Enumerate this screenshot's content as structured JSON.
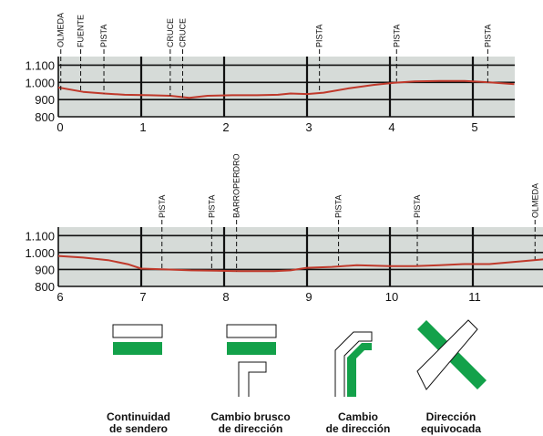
{
  "colors": {
    "panel": "#d6dbd8",
    "grid": "#111111",
    "profile": "#c0392b",
    "waymark": "#13a14a"
  },
  "chart_data": [
    {
      "type": "line",
      "title": "",
      "xlabel": "",
      "ylabel": "",
      "xlim": [
        0,
        5.5
      ],
      "ylim": [
        800,
        1150
      ],
      "xticks": [
        "0",
        "1",
        "2",
        "3",
        "4",
        "5"
      ],
      "yticks": [
        "1.100",
        "1.000",
        "900",
        "800"
      ],
      "yticks_values": [
        1100,
        1000,
        900,
        800
      ],
      "x": [
        0,
        0.3,
        0.55,
        0.8,
        1.1,
        1.35,
        1.58,
        1.8,
        2.1,
        2.4,
        2.65,
        2.8,
        3.0,
        3.2,
        3.5,
        3.8,
        4.05,
        4.3,
        4.6,
        4.9,
        5.2,
        5.5
      ],
      "values": [
        970,
        945,
        935,
        928,
        925,
        922,
        910,
        922,
        925,
        925,
        928,
        935,
        932,
        940,
        965,
        985,
        998,
        1005,
        1008,
        1008,
        1000,
        990
      ],
      "markers": [
        {
          "label": "OLMEDA",
          "x": 0.03
        },
        {
          "label": "FUENTE",
          "x": 0.27
        },
        {
          "label": "PISTA",
          "x": 0.55
        },
        {
          "label": "CRUCE",
          "x": 1.35
        },
        {
          "label": "CRUCE",
          "x": 1.5
        },
        {
          "label": "PISTA",
          "x": 3.15
        },
        {
          "label": "PISTA",
          "x": 4.08
        },
        {
          "label": "PISTA",
          "x": 5.18
        }
      ]
    },
    {
      "type": "line",
      "title": "",
      "xlabel": "",
      "ylabel": "",
      "xlim": [
        6,
        11.85
      ],
      "ylim": [
        800,
        1150
      ],
      "xticks": [
        "6",
        "7",
        "8",
        "9",
        "10",
        "11"
      ],
      "yticks": [
        "1.100",
        "1.000",
        "900",
        "800"
      ],
      "yticks_values": [
        1100,
        1000,
        900,
        800
      ],
      "x": [
        6.0,
        6.3,
        6.6,
        6.85,
        7.0,
        7.3,
        7.6,
        7.9,
        8.2,
        8.6,
        8.8,
        9.0,
        9.3,
        9.6,
        10.0,
        10.3,
        10.6,
        10.9,
        11.2,
        11.5,
        11.85
      ],
      "values": [
        980,
        970,
        955,
        930,
        905,
        900,
        895,
        893,
        890,
        890,
        895,
        910,
        915,
        925,
        920,
        920,
        925,
        932,
        932,
        945,
        960
      ],
      "markers": [
        {
          "label": "PISTA",
          "x": 7.25
        },
        {
          "label": "PISTA",
          "x": 7.85
        },
        {
          "label": "BARROPERDRO",
          "x": 8.15
        },
        {
          "label": "PISTA",
          "x": 9.38
        },
        {
          "label": "PISTA",
          "x": 10.33
        },
        {
          "label": "OLMEDA",
          "x": 11.75
        }
      ]
    }
  ],
  "legend": [
    {
      "icon": "continuity-waymark-icon",
      "caption_line1": "Continuidad",
      "caption_line2": "de sendero"
    },
    {
      "icon": "abrupt-turn-waymark-icon",
      "caption_line1": "Cambio brusco",
      "caption_line2": "de dirección"
    },
    {
      "icon": "direction-change-waymark-icon",
      "caption_line1": "Cambio",
      "caption_line2": "de dirección"
    },
    {
      "icon": "wrong-way-waymark-icon",
      "caption_line1": "Dirección",
      "caption_line2": "equivocada"
    }
  ]
}
